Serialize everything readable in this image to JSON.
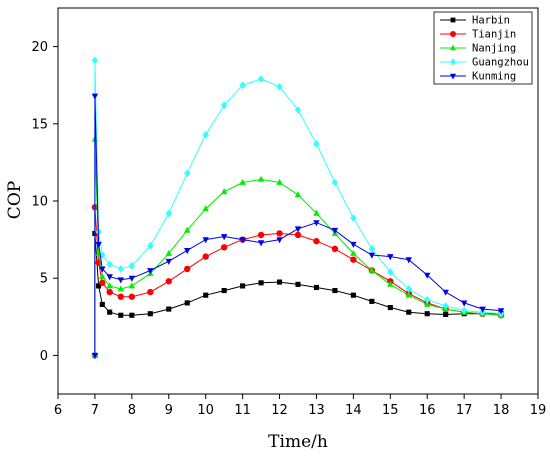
{
  "chart_data": {
    "type": "line",
    "xlabel": "Time/h",
    "ylabel": "COP",
    "xlim": [
      6,
      19
    ],
    "ylim": [
      -2.5,
      22.5
    ],
    "xticks": [
      6,
      7,
      8,
      9,
      10,
      11,
      12,
      13,
      14,
      15,
      16,
      17,
      18,
      19
    ],
    "yticks": [
      0,
      5,
      10,
      15,
      20
    ],
    "legend_position": "top-right",
    "grid": false,
    "series": [
      {
        "name": "Harbin",
        "color": "#000000",
        "marker": "square",
        "x": [
          7.0,
          7.0,
          7.1,
          7.2,
          7.4,
          7.7,
          8.0,
          8.5,
          9.0,
          9.5,
          10.0,
          10.5,
          11.0,
          11.5,
          12.0,
          12.5,
          13.0,
          13.5,
          14.0,
          14.5,
          15.0,
          15.5,
          16.0,
          16.5,
          17.0,
          17.5,
          18.0
        ],
        "y": [
          0,
          7.9,
          4.5,
          3.3,
          2.8,
          2.6,
          2.6,
          2.7,
          3.0,
          3.4,
          3.9,
          4.2,
          4.5,
          4.7,
          4.75,
          4.6,
          4.4,
          4.2,
          3.9,
          3.5,
          3.1,
          2.8,
          2.7,
          2.65,
          2.7,
          2.7,
          2.7
        ]
      },
      {
        "name": "Tianjin",
        "color": "#ff0000",
        "marker": "circle",
        "x": [
          7.0,
          7.0,
          7.1,
          7.2,
          7.4,
          7.7,
          8.0,
          8.5,
          9.0,
          9.5,
          10.0,
          10.5,
          11.0,
          11.5,
          12.0,
          12.5,
          13.0,
          13.5,
          14.0,
          14.5,
          15.0,
          15.5,
          16.0,
          16.5,
          17.0,
          17.5,
          18.0
        ],
        "y": [
          0,
          9.6,
          6.0,
          4.7,
          4.1,
          3.8,
          3.8,
          4.1,
          4.8,
          5.6,
          6.4,
          7.0,
          7.5,
          7.8,
          7.9,
          7.8,
          7.4,
          6.9,
          6.2,
          5.5,
          4.8,
          4.0,
          3.4,
          3.0,
          2.8,
          2.7,
          2.6
        ]
      },
      {
        "name": "Nanjing",
        "color": "#00ee00",
        "marker": "triangle-up",
        "x": [
          7.0,
          7.0,
          7.1,
          7.2,
          7.4,
          7.7,
          8.0,
          8.5,
          9.0,
          9.5,
          10.0,
          10.5,
          11.0,
          11.5,
          12.0,
          12.5,
          13.0,
          13.5,
          14.0,
          14.5,
          15.0,
          15.5,
          16.0,
          16.5,
          17.0,
          17.5,
          18.0
        ],
        "y": [
          0,
          14.0,
          6.6,
          5.1,
          4.5,
          4.3,
          4.5,
          5.3,
          6.6,
          8.1,
          9.5,
          10.6,
          11.2,
          11.4,
          11.2,
          10.4,
          9.2,
          7.9,
          6.6,
          5.5,
          4.6,
          3.9,
          3.3,
          3.0,
          2.8,
          2.7,
          2.6
        ]
      },
      {
        "name": "Guangzhou",
        "color": "#33ffff",
        "marker": "diamond",
        "x": [
          7.0,
          7.0,
          7.1,
          7.2,
          7.4,
          7.7,
          8.0,
          8.5,
          9.0,
          9.5,
          10.0,
          10.5,
          11.0,
          11.5,
          12.0,
          12.5,
          13.0,
          13.5,
          14.0,
          14.5,
          15.0,
          15.5,
          16.0,
          16.5,
          17.0,
          17.5,
          18.0
        ],
        "y": [
          0,
          19.1,
          8.0,
          6.5,
          5.9,
          5.6,
          5.8,
          7.1,
          9.2,
          11.8,
          14.3,
          16.2,
          17.5,
          17.9,
          17.4,
          15.9,
          13.7,
          11.2,
          8.9,
          6.9,
          5.4,
          4.3,
          3.6,
          3.2,
          2.9,
          2.8,
          2.7
        ]
      },
      {
        "name": "Kunming",
        "color": "#0000ee",
        "marker": "triangle-down",
        "x": [
          7.0,
          7.0,
          7.1,
          7.2,
          7.4,
          7.7,
          8.0,
          8.5,
          9.0,
          9.5,
          10.0,
          10.5,
          11.0,
          11.5,
          12.0,
          12.5,
          13.0,
          13.5,
          14.0,
          14.5,
          15.0,
          15.5,
          16.0,
          16.5,
          17.0,
          17.5,
          18.0
        ],
        "y": [
          0,
          16.8,
          7.2,
          5.6,
          5.1,
          4.9,
          5.0,
          5.5,
          6.1,
          6.8,
          7.5,
          7.7,
          7.5,
          7.3,
          7.5,
          8.2,
          8.6,
          8.1,
          7.2,
          6.5,
          6.4,
          6.2,
          5.2,
          4.1,
          3.4,
          3.0,
          2.9
        ]
      }
    ]
  }
}
